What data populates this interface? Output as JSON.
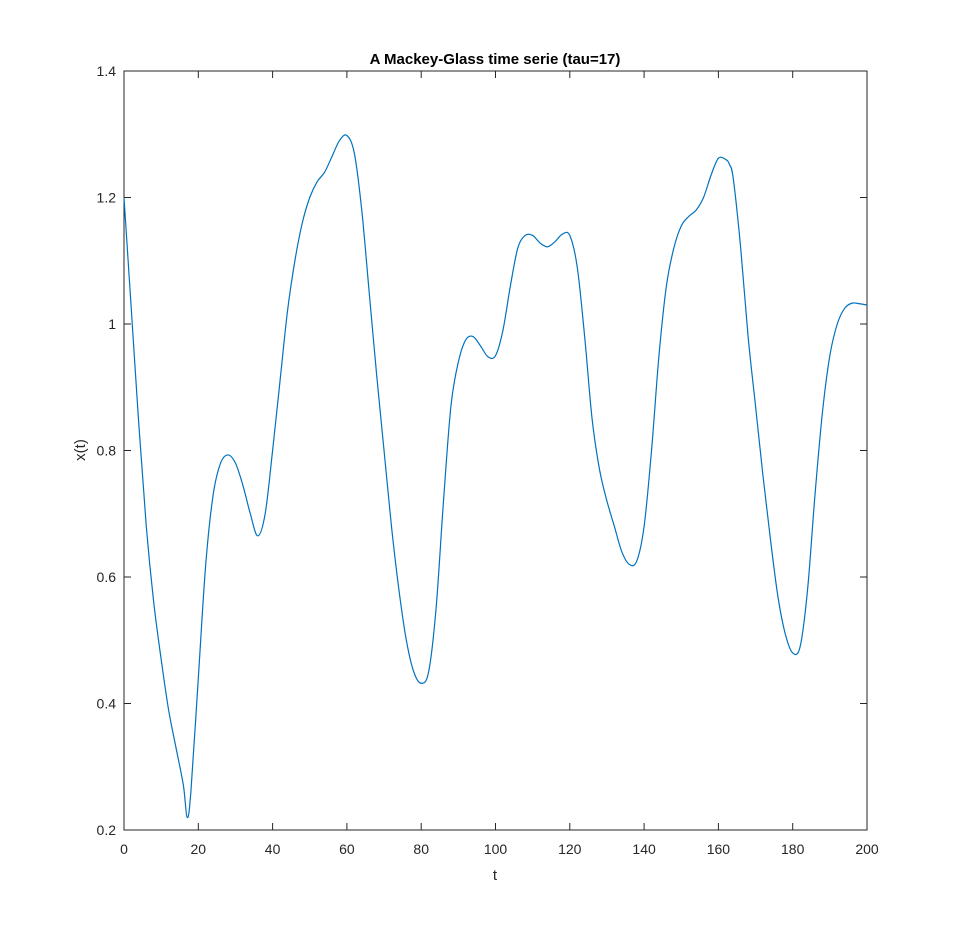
{
  "chart_data": {
    "type": "line",
    "title": "A Mackey-Glass time serie (tau=17)",
    "xlabel": "t",
    "ylabel": "x(t)",
    "xlim": [
      0,
      200
    ],
    "ylim": [
      0.2,
      1.4
    ],
    "xticks": [
      0,
      20,
      40,
      60,
      80,
      100,
      120,
      140,
      160,
      180,
      200
    ],
    "xtick_labels": [
      "0",
      "20",
      "40",
      "60",
      "80",
      "100",
      "120",
      "140",
      "160",
      "180",
      "200"
    ],
    "yticks": [
      0.2,
      0.4,
      0.6,
      0.8,
      1.0,
      1.2,
      1.4
    ],
    "ytick_labels": [
      "0.2",
      "0.4",
      "0.6",
      "0.8",
      "1",
      "1.2",
      "1.4"
    ],
    "grid": false,
    "colors": {
      "line": "#0072BD",
      "axes": "#262626"
    },
    "series": [
      {
        "x": [
          0,
          2,
          4,
          6,
          8,
          10,
          12,
          14,
          16,
          17,
          18,
          20,
          22,
          24,
          26,
          28,
          30,
          32,
          34,
          36,
          38,
          40,
          42,
          44,
          46,
          48,
          50,
          52,
          54,
          56,
          58,
          60,
          62,
          64,
          66,
          68,
          70,
          72,
          74,
          76,
          78,
          80,
          82,
          84,
          86,
          88,
          90,
          92,
          94,
          96,
          98,
          100,
          102,
          104,
          106,
          108,
          110,
          112,
          114,
          116,
          118,
          120,
          122,
          124,
          126,
          128,
          130,
          132,
          134,
          136,
          138,
          140,
          142,
          144,
          146,
          148,
          150,
          152,
          154,
          156,
          158,
          160,
          162,
          163,
          164,
          166,
          168,
          170,
          172,
          174,
          176,
          178,
          180,
          182,
          184,
          186,
          188,
          190,
          192,
          194,
          196,
          198,
          200
        ],
        "y": [
          1.2,
          1.02,
          0.84,
          0.68,
          0.56,
          0.47,
          0.39,
          0.33,
          0.27,
          0.22,
          0.26,
          0.44,
          0.62,
          0.73,
          0.78,
          0.793,
          0.78,
          0.745,
          0.7,
          0.665,
          0.7,
          0.8,
          0.91,
          1.02,
          1.1,
          1.16,
          1.2,
          1.225,
          1.24,
          1.265,
          1.29,
          1.298,
          1.27,
          1.18,
          1.05,
          0.92,
          0.8,
          0.68,
          0.58,
          0.5,
          0.45,
          0.432,
          0.45,
          0.55,
          0.72,
          0.87,
          0.94,
          0.975,
          0.98,
          0.965,
          0.948,
          0.95,
          0.99,
          1.06,
          1.12,
          1.14,
          1.14,
          1.128,
          1.122,
          1.13,
          1.142,
          1.14,
          1.09,
          0.98,
          0.85,
          0.77,
          0.72,
          0.68,
          0.64,
          0.62,
          0.625,
          0.68,
          0.8,
          0.95,
          1.06,
          1.12,
          1.155,
          1.17,
          1.18,
          1.2,
          1.235,
          1.262,
          1.26,
          1.252,
          1.23,
          1.12,
          0.98,
          0.87,
          0.76,
          0.66,
          0.57,
          0.51,
          0.48,
          0.49,
          0.58,
          0.73,
          0.86,
          0.95,
          1.0,
          1.025,
          1.033,
          1.032,
          1.03
        ]
      }
    ]
  }
}
